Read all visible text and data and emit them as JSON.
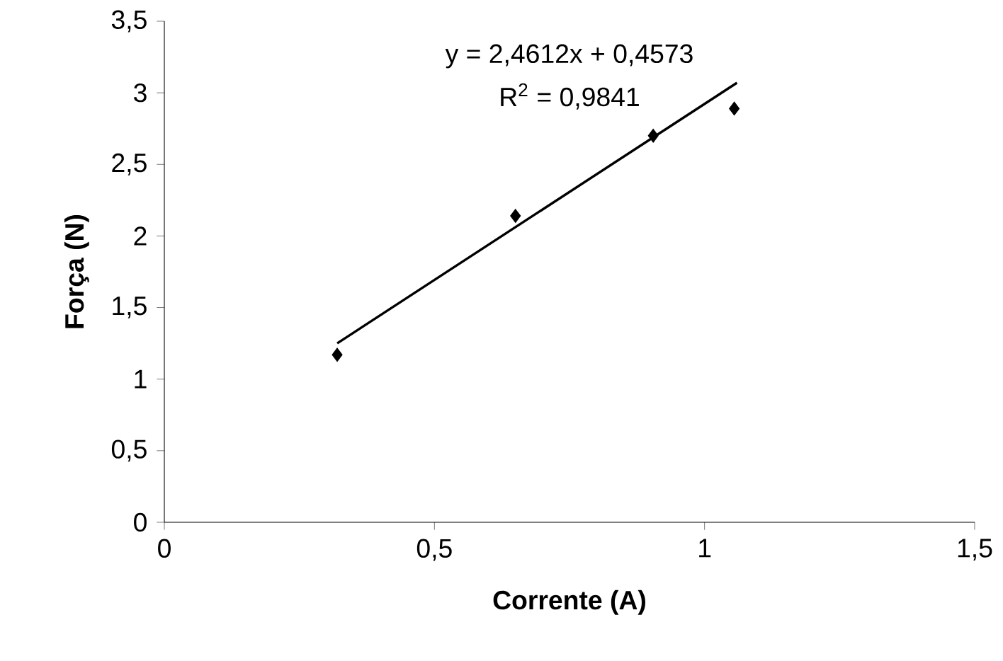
{
  "chart_data": {
    "type": "scatter",
    "xlabel": "Corrente (A)",
    "ylabel": "Força (N)",
    "xlim": [
      0,
      1.5
    ],
    "ylim": [
      0,
      3.5
    ],
    "xticks": [
      0,
      {
        "value": 0.5,
        "label": "0,5"
      },
      1,
      {
        "value": 1.5,
        "label": "1,5"
      }
    ],
    "yticks": [
      0,
      {
        "value": 0.5,
        "label": "0,5"
      },
      1,
      {
        "value": 1.5,
        "label": "1,5"
      },
      2,
      {
        "value": 2.5,
        "label": "2,5"
      },
      3,
      {
        "value": 3.5,
        "label": "3,5"
      }
    ],
    "grid": false,
    "series": [
      {
        "marker": "diamond",
        "color": "#000000",
        "x": [
          0.32,
          0.65,
          0.905,
          1.055
        ],
        "values": [
          1.17,
          2.14,
          2.7,
          2.89
        ]
      },
      {
        "type": "line",
        "marker": "none",
        "line_style": "solid",
        "color": "#000000",
        "x": [
          0.32,
          1.06
        ],
        "values": [
          1.25,
          3.07
        ]
      }
    ],
    "annotations": [
      "y = 2,4612x + 0,4573",
      "R$^{2}$ = 0,9841"
    ]
  }
}
